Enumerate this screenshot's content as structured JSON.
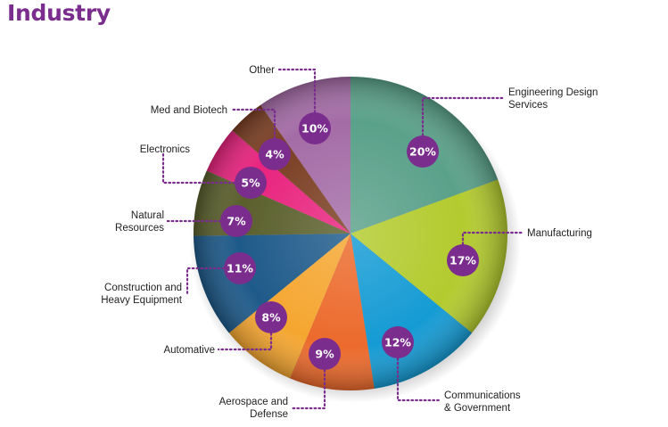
{
  "title": "Industry",
  "chart_data": {
    "type": "pie",
    "title": "Industry",
    "legend": "none",
    "slices": [
      {
        "name": "Engineering Design Services",
        "lines": [
          "Engineering Design",
          "Services"
        ],
        "value": 20,
        "label": "20%",
        "color": "#5aa18a"
      },
      {
        "name": "Manufacturing",
        "lines": [
          "Manufacturing"
        ],
        "value": 17,
        "label": "17%",
        "color": "#b3cb2e"
      },
      {
        "name": "Communications & Government",
        "lines": [
          "Communications",
          "& Government"
        ],
        "value": 12,
        "label": "12%",
        "color": "#159bd4"
      },
      {
        "name": "Aerospace and Defense",
        "lines": [
          "Aerospace and",
          "Defense"
        ],
        "value": 9,
        "label": "9%",
        "color": "#ec6a2c"
      },
      {
        "name": "Automative",
        "lines": [
          "Automative"
        ],
        "value": 8,
        "label": "8%",
        "color": "#f5a630"
      },
      {
        "name": "Construction and Heavy Equipment",
        "lines": [
          "Construction and",
          "Heavy Equipment"
        ],
        "value": 11,
        "label": "11%",
        "color": "#1e5a8a"
      },
      {
        "name": "Natural Resources",
        "lines": [
          "Natural",
          "Resources"
        ],
        "value": 7,
        "label": "7%",
        "color": "#5a5f2c"
      },
      {
        "name": "Electronics",
        "lines": [
          "Electronics"
        ],
        "value": 5,
        "label": "5%",
        "color": "#e8237e"
      },
      {
        "name": "Med and Biotech",
        "lines": [
          "Med and Biotech"
        ],
        "value": 4,
        "label": "4%",
        "color": "#7a3e22"
      },
      {
        "name": "Other",
        "lines": [
          "Other"
        ],
        "value": 10,
        "label": "10%",
        "color": "#a46ca6"
      }
    ],
    "colors": {
      "badge": "#7b2d8e",
      "leader": "#7b2d8e",
      "title": "#7b2d8e"
    }
  }
}
